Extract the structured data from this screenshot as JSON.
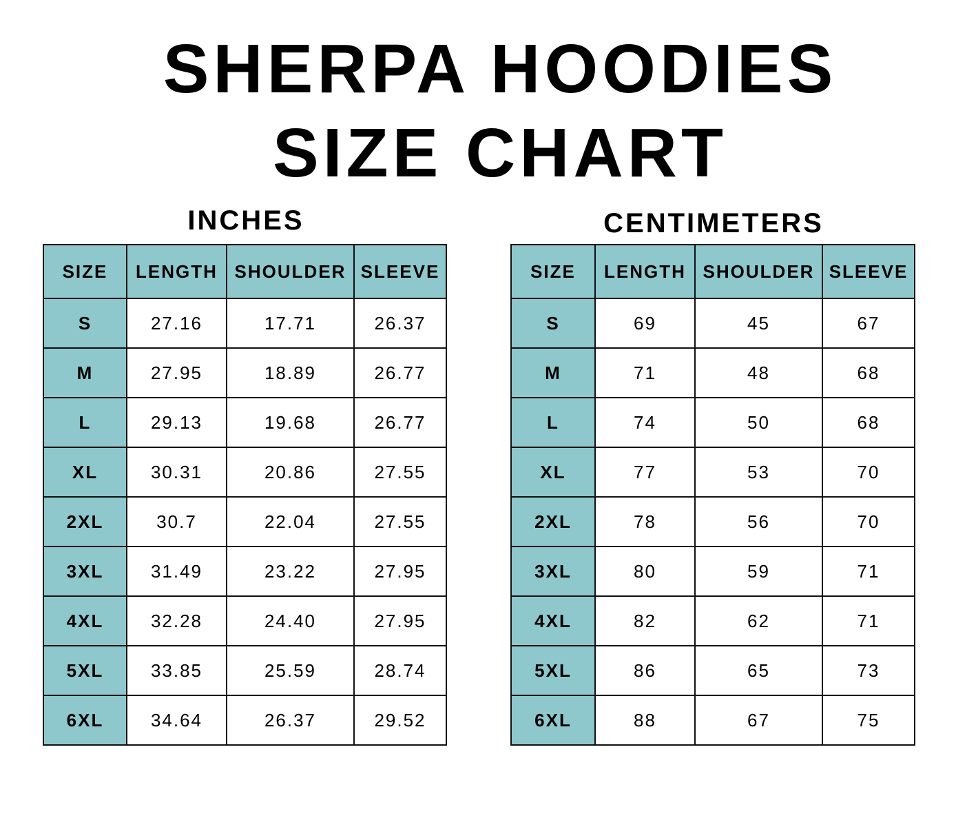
{
  "title_line1": "SHERPA HOODIES",
  "title_line2": "SIZE CHART",
  "colors": {
    "header_fill": "#8ec8cc",
    "border": "#111111",
    "background": "#ffffff"
  },
  "chart_data": [
    {
      "type": "table",
      "title": "INCHES",
      "columns": [
        "SIZE",
        "LENGTH",
        "SHOULDER",
        "SLEEVE"
      ],
      "rows": [
        [
          "S",
          "27.16",
          "17.71",
          "26.37"
        ],
        [
          "M",
          "27.95",
          "18.89",
          "26.77"
        ],
        [
          "L",
          "29.13",
          "19.68",
          "26.77"
        ],
        [
          "XL",
          "30.31",
          "20.86",
          "27.55"
        ],
        [
          "2XL",
          "30.7",
          "22.04",
          "27.55"
        ],
        [
          "3XL",
          "31.49",
          "23.22",
          "27.95"
        ],
        [
          "4XL",
          "32.28",
          "24.40",
          "27.95"
        ],
        [
          "5XL",
          "33.85",
          "25.59",
          "28.74"
        ],
        [
          "6XL",
          "34.64",
          "26.37",
          "29.52"
        ]
      ]
    },
    {
      "type": "table",
      "title": "CENTIMETERS",
      "columns": [
        "SIZE",
        "LENGTH",
        "SHOULDER",
        "SLEEVE"
      ],
      "rows": [
        [
          "S",
          "69",
          "45",
          "67"
        ],
        [
          "M",
          "71",
          "48",
          "68"
        ],
        [
          "L",
          "74",
          "50",
          "68"
        ],
        [
          "XL",
          "77",
          "53",
          "70"
        ],
        [
          "2XL",
          "78",
          "56",
          "70"
        ],
        [
          "3XL",
          "80",
          "59",
          "71"
        ],
        [
          "4XL",
          "82",
          "62",
          "71"
        ],
        [
          "5XL",
          "86",
          "65",
          "73"
        ],
        [
          "6XL",
          "88",
          "67",
          "75"
        ]
      ]
    }
  ]
}
